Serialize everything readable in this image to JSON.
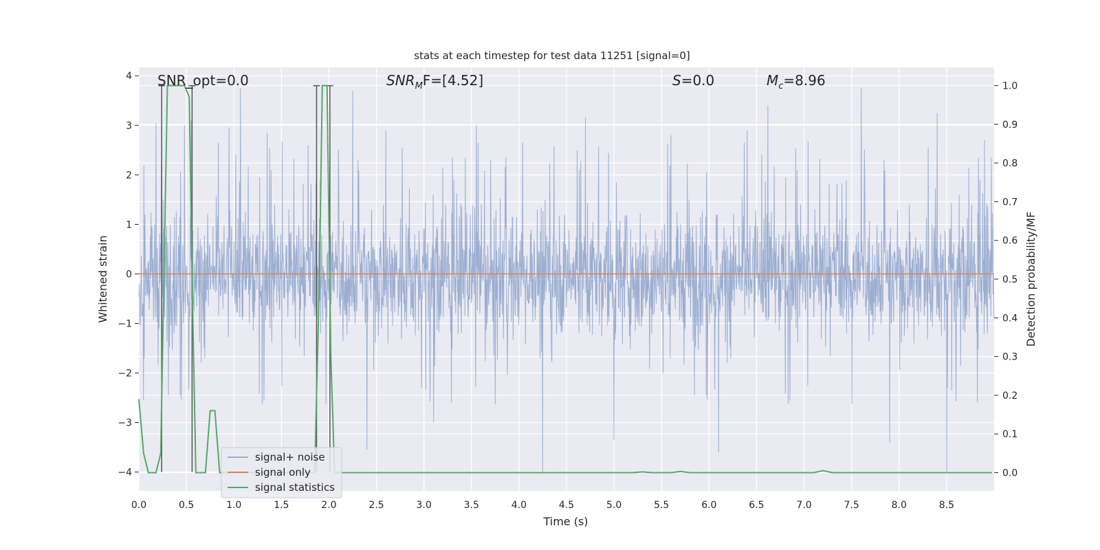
{
  "chart_data": {
    "type": "line",
    "title": "stats at each timestep for test data 11251 [signal=0]",
    "xlabel": "Time (s)",
    "ylabel": "Whitened strain",
    "ylabel_right": "Detection probability/MF",
    "xlim": [
      0,
      9.0
    ],
    "ylim": [
      -4.38,
      4.17
    ],
    "ylim_right": [
      -0.047,
      1.047
    ],
    "x_ticks": [
      "0.0",
      "0.5",
      "1.0",
      "1.5",
      "2.0",
      "2.5",
      "3.0",
      "3.5",
      "4.0",
      "4.5",
      "5.0",
      "5.5",
      "6.0",
      "6.5",
      "7.0",
      "7.5",
      "8.0",
      "8.5"
    ],
    "y_ticks": [
      "4",
      "3",
      "2",
      "1",
      "0",
      "−1",
      "−2",
      "−3",
      "−4"
    ],
    "y_right_ticks": [
      "1.0",
      "0.9",
      "0.8",
      "0.7",
      "0.6",
      "0.5",
      "0.4",
      "0.3",
      "0.2",
      "0.1",
      "0.0"
    ],
    "grid": true,
    "legend_position": "lower-left",
    "colors": {
      "background": "#eaeaf2",
      "grid": "#ffffff",
      "signal_noise": "#4c72b0",
      "signal_only": "#dd8452",
      "signal_statistics": "#55a868",
      "markers": "#555555"
    },
    "annotations": [
      {
        "text": "SNR_opt=0.0"
      },
      {
        "text": "SNR_MF=[4.52]",
        "parts": {
          "pre": "SNR",
          "sub": "M",
          "post": "F=[4.52]"
        }
      },
      {
        "text": "S=0.0",
        "parts": {
          "var": "S",
          "post": "=0.0"
        }
      },
      {
        "text": "M_c=8.96",
        "parts": {
          "var": "M",
          "sub": "c",
          "post": "=8.96"
        }
      }
    ],
    "series": [
      {
        "name": "signal+ noise",
        "kind": "noise_trace",
        "description_values": {
          "typical_envelope": [
            -1.7,
            1.7
          ],
          "peak_max": 3.8,
          "peak_min": -4.0
        },
        "spikes": [
          {
            "x": 0.05,
            "y": 3.4
          },
          {
            "x": 0.18,
            "y": 3.05
          },
          {
            "x": 0.48,
            "y": 3.0
          },
          {
            "x": 0.55,
            "y": 3.1
          },
          {
            "x": 0.95,
            "y": 2.95
          },
          {
            "x": 1.07,
            "y": 3.75
          },
          {
            "x": 1.35,
            "y": 2.85
          },
          {
            "x": 1.78,
            "y": 2.6
          },
          {
            "x": 2.25,
            "y": 3.7
          },
          {
            "x": 2.6,
            "y": 2.9
          },
          {
            "x": 3.55,
            "y": 3.0
          },
          {
            "x": 4.7,
            "y": 3.15
          },
          {
            "x": 5.6,
            "y": 2.8
          },
          {
            "x": 6.4,
            "y": 2.9
          },
          {
            "x": 6.62,
            "y": 3.4
          },
          {
            "x": 7.6,
            "y": 3.75
          },
          {
            "x": 8.4,
            "y": 3.25
          },
          {
            "x": 8.9,
            "y": 2.7
          },
          {
            "x": 0.05,
            "y": -2.55
          },
          {
            "x": 2.4,
            "y": -3.55
          },
          {
            "x": 4.25,
            "y": -4.0
          },
          {
            "x": 5.0,
            "y": -3.35
          },
          {
            "x": 6.1,
            "y": -3.6
          },
          {
            "x": 7.9,
            "y": -3.4
          },
          {
            "x": 8.5,
            "y": -4.0
          },
          {
            "x": 3.1,
            "y": -3.0
          }
        ]
      },
      {
        "name": "signal only",
        "kind": "flat",
        "x": [
          0.0,
          9.0
        ],
        "y": [
          0.0,
          0.0
        ]
      },
      {
        "name": "signal statistics",
        "kind": "probability",
        "axis": "right",
        "x": [
          0.0,
          0.05,
          0.1,
          0.18,
          0.23,
          0.3,
          0.35,
          0.48,
          0.53,
          0.56,
          0.6,
          0.65,
          0.7,
          0.75,
          0.8,
          0.85,
          0.9,
          1.0,
          1.5,
          1.85,
          1.9,
          1.93,
          1.98,
          2.02,
          2.06,
          2.5,
          5.2,
          5.3,
          5.4,
          5.6,
          5.7,
          5.8,
          7.1,
          7.2,
          7.3,
          8.5,
          8.98
        ],
        "y": [
          0.19,
          0.05,
          0.0,
          0.0,
          0.05,
          1.0,
          1.0,
          1.0,
          0.97,
          0.5,
          0.0,
          0.0,
          0.0,
          0.16,
          0.16,
          0.0,
          0.0,
          0.0,
          0.0,
          0.0,
          0.5,
          1.0,
          1.0,
          0.3,
          0.0,
          0.0,
          0.0,
          0.002,
          0.0,
          0.0,
          0.003,
          0.0,
          0.0,
          0.005,
          0.0,
          0.0,
          0.0
        ]
      }
    ],
    "marker_lines": [
      {
        "x": 0.24,
        "y_top": 3.8,
        "y_bottom": -4.0
      },
      {
        "x": 0.56,
        "y_top": 3.8,
        "y_bottom": -4.0
      },
      {
        "x": 1.87,
        "y_top": 3.8,
        "y_bottom": -4.0
      },
      {
        "x": 2.01,
        "y_top": 3.8,
        "y_bottom": -4.0
      }
    ]
  }
}
